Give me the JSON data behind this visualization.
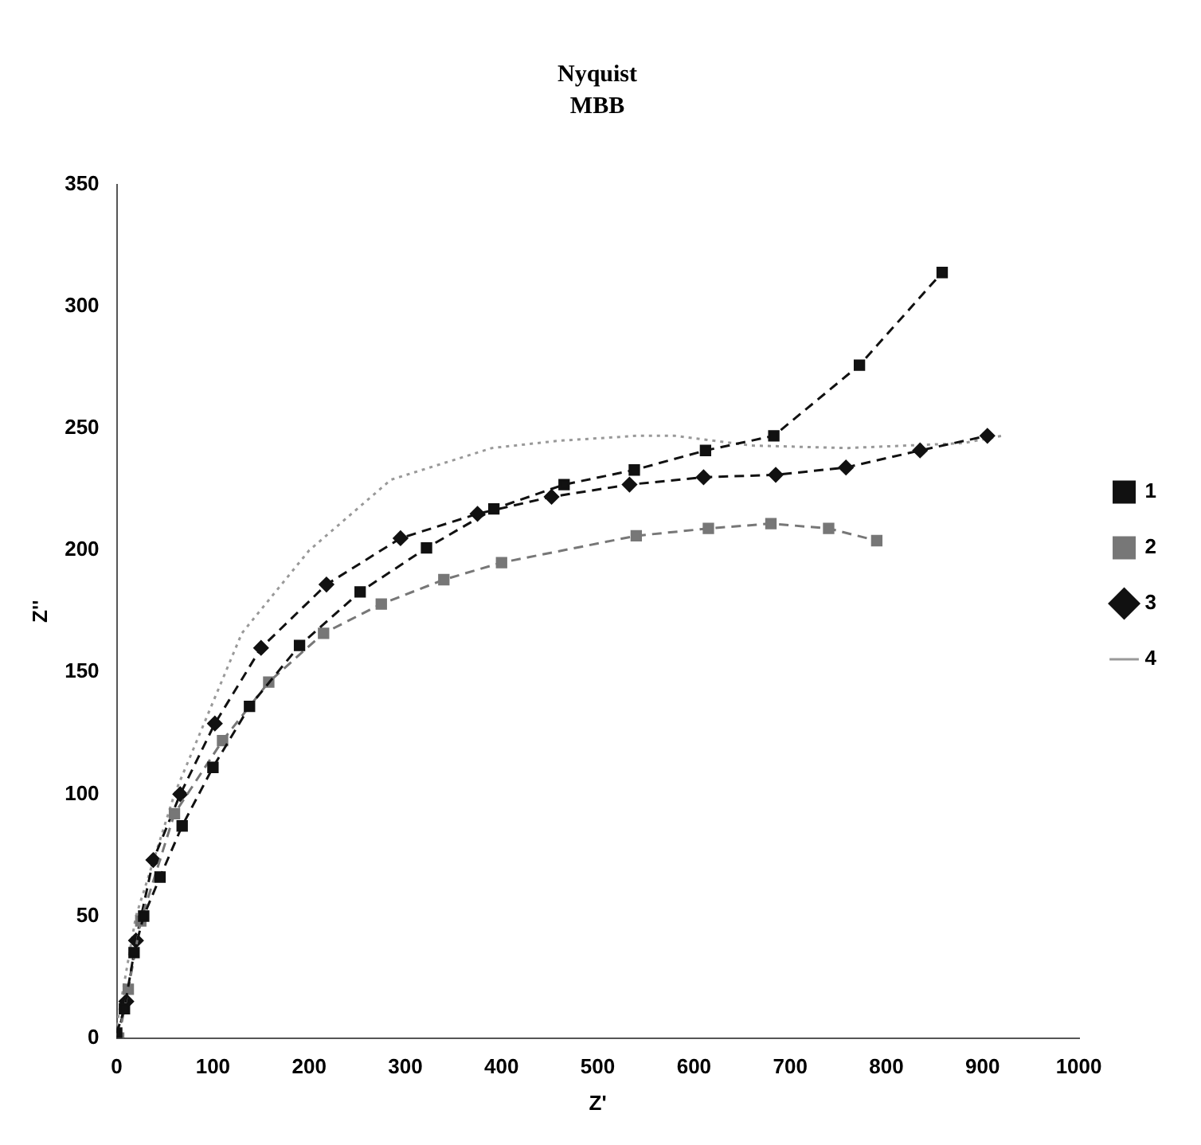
{
  "chart_data": {
    "type": "line",
    "title": "Nyquist",
    "subtitle": "MBB",
    "xlabel": "Z'",
    "ylabel": "Z''",
    "xlim": [
      0,
      1000
    ],
    "xticks": [
      0,
      100,
      200,
      300,
      400,
      500,
      600,
      700,
      800,
      900,
      1000
    ],
    "ylim": [
      0,
      350
    ],
    "yticks": [
      0,
      50,
      100,
      150,
      200,
      250,
      300,
      350
    ],
    "grid": false,
    "legend": "right",
    "line_style": "dashed",
    "series": [
      {
        "name": "1",
        "color": "#111111",
        "marker": "square",
        "x": [
          0,
          8,
          18,
          28,
          45,
          68,
          100,
          138,
          190,
          253,
          322,
          392,
          465,
          538,
          612,
          683,
          772,
          858
        ],
        "values": [
          2,
          12,
          35,
          50,
          66,
          87,
          111,
          136,
          161,
          183,
          201,
          217,
          227,
          233,
          241,
          247,
          276,
          314
        ]
      },
      {
        "name": "2",
        "color": "#777777",
        "marker": "square",
        "x": [
          2,
          12,
          25,
          60,
          110,
          158,
          215,
          275,
          340,
          400,
          540,
          615,
          680,
          740,
          790
        ],
        "values": [
          0,
          20,
          48,
          92,
          122,
          146,
          166,
          178,
          188,
          195,
          206,
          209,
          211,
          209,
          204
        ]
      },
      {
        "name": "3",
        "color": "#111111",
        "marker": "diamond",
        "x": [
          0,
          10,
          20,
          38,
          66,
          102,
          150,
          218,
          295,
          375,
          452,
          533,
          610,
          685,
          758,
          835,
          905
        ],
        "values": [
          0,
          15,
          40,
          73,
          100,
          129,
          160,
          186,
          205,
          215,
          222,
          227,
          230,
          231,
          234,
          241,
          247
        ]
      },
      {
        "name": "4",
        "color": "#999999",
        "marker": "none",
        "line_style": "dotted",
        "x": [
          0,
          20,
          60,
          130,
          200,
          285,
          390,
          460,
          540,
          580,
          660,
          760,
          880,
          920
        ],
        "values": [
          5,
          50,
          100,
          166,
          200,
          229,
          242,
          245,
          247,
          247,
          243,
          242,
          244,
          247
        ]
      }
    ]
  }
}
